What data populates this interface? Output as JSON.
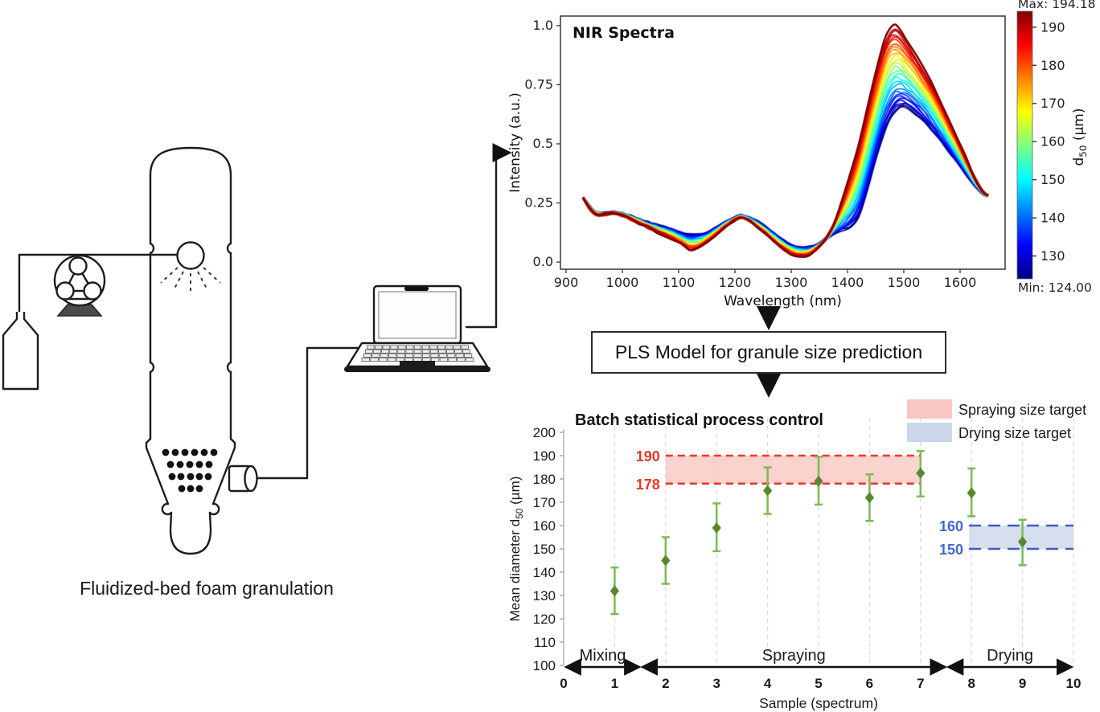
{
  "apparatus": {
    "caption": "Fluidized-bed foam granulation"
  },
  "pls_box": {
    "label": "PLS Model for granule size prediction"
  },
  "chart_data": [
    {
      "id": "nir",
      "type": "line",
      "title": "NIR Spectra",
      "xlabel": "Wavelength (nm)",
      "ylabel": "Intensity (a.u.)",
      "xlim": [
        890,
        1680
      ],
      "ylim": [
        -0.03,
        1.04
      ],
      "xticks": [
        900,
        1000,
        1100,
        1200,
        1300,
        1400,
        1500,
        1600
      ],
      "yticks": [
        "0.0",
        "0.25",
        "0.5",
        "0.75",
        "1.0"
      ],
      "grid": false,
      "legend_position": "none",
      "colorbar": {
        "colormap": "jet",
        "vmin": 124.0,
        "vmax": 194.18,
        "max_label": "Max: 194.18",
        "min_label": "Min: 124.00",
        "ticks": [
          190,
          180,
          170,
          160,
          150,
          140,
          130
        ],
        "label_parts": [
          "d",
          "50",
          " (µm)"
        ]
      },
      "wavelengths": [
        930,
        942,
        955,
        970,
        985,
        1000,
        1015,
        1030,
        1045,
        1060,
        1075,
        1090,
        1105,
        1120,
        1135,
        1150,
        1165,
        1180,
        1195,
        1210,
        1225,
        1240,
        1255,
        1270,
        1285,
        1300,
        1315,
        1330,
        1345,
        1360,
        1375,
        1390,
        1405,
        1420,
        1435,
        1450,
        1465,
        1475,
        1485,
        1495,
        1505,
        1520,
        1535,
        1550,
        1565,
        1580,
        1595,
        1610,
        1625,
        1640,
        1650
      ],
      "profile_low_d50_124": [
        0.275,
        0.235,
        0.208,
        0.207,
        0.21,
        0.205,
        0.193,
        0.18,
        0.168,
        0.157,
        0.147,
        0.136,
        0.124,
        0.117,
        0.117,
        0.125,
        0.142,
        0.163,
        0.183,
        0.196,
        0.19,
        0.172,
        0.148,
        0.12,
        0.094,
        0.075,
        0.064,
        0.062,
        0.072,
        0.093,
        0.12,
        0.133,
        0.143,
        0.19,
        0.3,
        0.43,
        0.545,
        0.6,
        0.638,
        0.652,
        0.65,
        0.628,
        0.596,
        0.557,
        0.513,
        0.467,
        0.42,
        0.373,
        0.327,
        0.292,
        0.278
      ],
      "profile_high_d50_194": [
        0.272,
        0.225,
        0.2,
        0.203,
        0.205,
        0.196,
        0.18,
        0.163,
        0.146,
        0.13,
        0.113,
        0.096,
        0.075,
        0.052,
        0.058,
        0.082,
        0.112,
        0.143,
        0.17,
        0.185,
        0.172,
        0.146,
        0.117,
        0.085,
        0.056,
        0.033,
        0.022,
        0.03,
        0.055,
        0.095,
        0.16,
        0.255,
        0.37,
        0.5,
        0.65,
        0.8,
        0.93,
        0.985,
        1.0,
        0.975,
        0.935,
        0.878,
        0.818,
        0.752,
        0.68,
        0.603,
        0.523,
        0.443,
        0.363,
        0.3,
        0.282
      ],
      "line_d50_values": [
        124.0,
        125.5,
        127.0,
        128.5,
        130.0,
        132.0,
        134.0,
        136.5,
        139.0,
        142.0,
        145.0,
        148.0,
        151.0,
        154.0,
        157.0,
        160.0,
        163.0,
        166.0,
        169.0,
        172.0,
        175.0,
        177.5,
        180.0,
        182.5,
        185.0,
        187.0,
        189.0,
        191.5,
        194.18
      ]
    },
    {
      "id": "spc",
      "type": "scatter",
      "title": "Batch statistical process control",
      "xlabel": "Sample (spectrum)",
      "ylabel_parts": [
        "Mean diameter d",
        "50",
        " (µm)"
      ],
      "xlim": [
        0,
        10
      ],
      "ylim": [
        100,
        200
      ],
      "xticks": [
        0,
        1,
        2,
        3,
        4,
        5,
        6,
        7,
        8,
        9,
        10
      ],
      "yticks": [
        100,
        110,
        120,
        130,
        140,
        150,
        160,
        170,
        180,
        190,
        200
      ],
      "grid": "vertical-dashed",
      "marker": "diamond",
      "marker_color": "#57892c",
      "errorbar_color": "#7cb957",
      "points": [
        {
          "x": 1,
          "y": 132,
          "lo": 122,
          "hi": 142
        },
        {
          "x": 2,
          "y": 145,
          "lo": 135,
          "hi": 155
        },
        {
          "x": 3,
          "y": 159,
          "lo": 149,
          "hi": 169.5
        },
        {
          "x": 4,
          "y": 175,
          "lo": 165,
          "hi": 185
        },
        {
          "x": 5,
          "y": 179,
          "lo": 169,
          "hi": 189.5
        },
        {
          "x": 6,
          "y": 172,
          "lo": 162,
          "hi": 182
        },
        {
          "x": 7,
          "y": 182.5,
          "lo": 172.5,
          "hi": 192
        },
        {
          "x": 8,
          "y": 174,
          "lo": 164,
          "hi": 184.5
        },
        {
          "x": 9,
          "y": 153,
          "lo": 143,
          "hi": 162.5
        }
      ],
      "bands": [
        {
          "name": "spraying-target",
          "y0": 178,
          "y1": 190,
          "x0": 2,
          "x1": 7,
          "label_top": "190",
          "label_bottom": "178",
          "fill": "#f9cdc9",
          "line": "#e8372d",
          "text": "#e8372d",
          "dash": "9 6"
        },
        {
          "name": "drying-target",
          "y0": 150,
          "y1": 160,
          "x0": 7.95,
          "x1": 10,
          "label_top": "160",
          "label_bottom": "150",
          "fill": "#d2dbec",
          "line": "#3a5ec0",
          "text": "#3f6ac8",
          "dash": "15 9"
        }
      ],
      "legend": [
        {
          "label": "Spraying size target",
          "swatch": "#f9c6c4"
        },
        {
          "label": "Drying size target",
          "swatch": "#ccd6e8"
        }
      ],
      "phases": [
        {
          "label": "Mixing",
          "x0": 0.08,
          "x1": 1.45
        },
        {
          "label": "Spraying",
          "x0": 1.58,
          "x1": 7.45
        },
        {
          "label": "Drying",
          "x0": 7.58,
          "x1": 9.93
        }
      ]
    }
  ]
}
